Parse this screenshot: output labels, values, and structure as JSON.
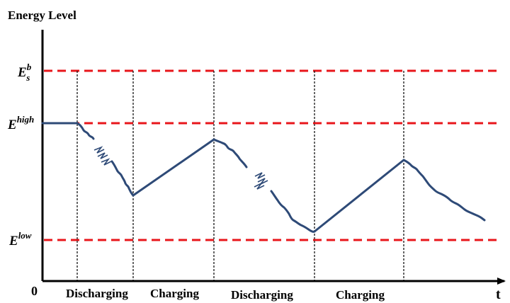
{
  "axis": {
    "y_title": "Energy Level",
    "origin_label": "0",
    "x_label": "t"
  },
  "levels": {
    "esb": {
      "base": "E",
      "sub": "s",
      "sup": "b"
    },
    "high": {
      "base": "E",
      "sup": "high"
    },
    "low": {
      "base": "E",
      "sup": "low"
    }
  },
  "phases": [
    "Discharging",
    "Charging",
    "Discharging",
    "Charging"
  ],
  "colors": {
    "threshold": "#e8161b",
    "curve": "#2e4a77",
    "axis": "#000000"
  }
}
